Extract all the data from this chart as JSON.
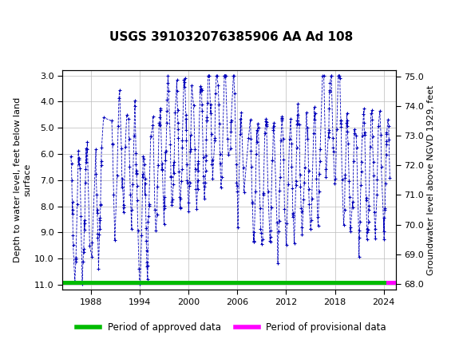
{
  "title": "USGS 391032076385906 AA Ad 108",
  "ylabel_left": "Depth to water level, feet below land\nsurface",
  "ylabel_right": "Groundwater level above NGVD 1929, feet",
  "xlim": [
    1984.5,
    2025.5
  ],
  "ylim_left": [
    11.2,
    2.8
  ],
  "ylim_right": [
    67.8,
    75.2
  ],
  "xticks": [
    1988,
    1994,
    2000,
    2006,
    2012,
    2018,
    2024
  ],
  "yticks_left": [
    3.0,
    4.0,
    5.0,
    6.0,
    7.0,
    8.0,
    9.0,
    10.0,
    11.0
  ],
  "yticks_right": [
    75.0,
    74.0,
    73.0,
    72.0,
    71.0,
    70.0,
    69.0,
    68.0
  ],
  "header_color": "#006633",
  "data_color": "#0000BB",
  "approved_color": "#00BB00",
  "provisional_color": "#FF00FF",
  "background_color": "#ffffff",
  "grid_color": "#bbbbbb",
  "marker": "+",
  "linestyle": "--",
  "markersize": 3,
  "linewidth": 0.6,
  "n_points": 500
}
